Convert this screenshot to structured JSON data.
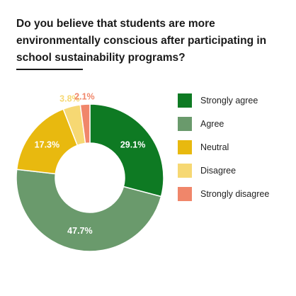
{
  "chart_data": {
    "type": "pie",
    "donut": true,
    "title": "Do you believe that students are more environmentally conscious after participating in school sustainability programs?",
    "categories": [
      "Strongly agree",
      "Agree",
      "Neutral",
      "Disagree",
      "Strongly disagree"
    ],
    "values": [
      29.1,
      47.7,
      17.3,
      3.8,
      2.1
    ],
    "value_labels": [
      "29.1%",
      "47.7%",
      "17.3%",
      "3.8%",
      "2.1%"
    ],
    "colors": [
      "#0e7a23",
      "#6a9a6c",
      "#e8b90f",
      "#f6d873",
      "#f0866a"
    ],
    "legend_position": "right",
    "start_angle": "top, clockwise"
  }
}
